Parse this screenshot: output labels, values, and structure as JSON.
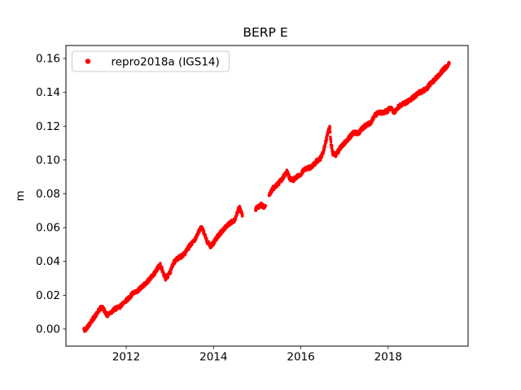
{
  "title": "BERP E",
  "chart_data": {
    "type": "scatter",
    "title": "BERP E",
    "xlabel": "",
    "ylabel": "m",
    "xlim": [
      2010.62,
      2019.83
    ],
    "ylim": [
      -0.0101,
      0.1677
    ],
    "xticks": [
      2012,
      2014,
      2016,
      2018
    ],
    "yticks": [
      0.0,
      0.02,
      0.04,
      0.06,
      0.08,
      0.1,
      0.12,
      0.14,
      0.16
    ],
    "grid": false,
    "legend_position": "upper left",
    "marker": "dot",
    "series": [
      {
        "name": "repro2018a (IGS14)",
        "color": "#ff0000",
        "units": "m",
        "segments": [
          [
            [
              2011.03,
              0.0
            ],
            [
              2011.06,
              -0.001
            ],
            [
              2011.1,
              0.001
            ],
            [
              2011.16,
              0.003
            ],
            [
              2011.24,
              0.006
            ],
            [
              2011.33,
              0.009
            ],
            [
              2011.4,
              0.012
            ],
            [
              2011.45,
              0.013
            ],
            [
              2011.5,
              0.011
            ],
            [
              2011.57,
              0.008
            ],
            [
              2011.65,
              0.01
            ],
            [
              2011.75,
              0.012
            ],
            [
              2011.85,
              0.013
            ],
            [
              2011.95,
              0.016
            ],
            [
              2012.05,
              0.018
            ],
            [
              2012.15,
              0.021
            ],
            [
              2012.25,
              0.022
            ],
            [
              2012.35,
              0.025
            ],
            [
              2012.45,
              0.027
            ],
            [
              2012.55,
              0.03
            ],
            [
              2012.65,
              0.033
            ],
            [
              2012.72,
              0.036
            ],
            [
              2012.78,
              0.038
            ],
            [
              2012.84,
              0.034
            ],
            [
              2012.9,
              0.03
            ],
            [
              2013.0,
              0.033
            ],
            [
              2013.08,
              0.039
            ],
            [
              2013.15,
              0.041
            ],
            [
              2013.25,
              0.043
            ],
            [
              2013.35,
              0.045
            ],
            [
              2013.45,
              0.049
            ],
            [
              2013.55,
              0.052
            ],
            [
              2013.65,
              0.057
            ],
            [
              2013.72,
              0.06
            ],
            [
              2013.78,
              0.057
            ],
            [
              2013.85,
              0.052
            ],
            [
              2013.93,
              0.049
            ],
            [
              2014.0,
              0.051
            ],
            [
              2014.1,
              0.055
            ],
            [
              2014.2,
              0.058
            ],
            [
              2014.3,
              0.061
            ],
            [
              2014.4,
              0.063
            ],
            [
              2014.5,
              0.065
            ],
            [
              2014.56,
              0.07
            ],
            [
              2014.6,
              0.072
            ],
            [
              2014.66,
              0.067
            ]
          ],
          [
            [
              2014.96,
              0.071
            ],
            [
              2015.02,
              0.072
            ],
            [
              2015.09,
              0.0735
            ],
            [
              2015.15,
              0.072
            ],
            [
              2015.19,
              0.073
            ]
          ],
          [
            [
              2015.27,
              0.079
            ],
            [
              2015.35,
              0.083
            ],
            [
              2015.45,
              0.085
            ],
            [
              2015.55,
              0.088
            ],
            [
              2015.63,
              0.091
            ],
            [
              2015.68,
              0.093
            ],
            [
              2015.75,
              0.089
            ],
            [
              2015.82,
              0.088
            ],
            [
              2015.9,
              0.09
            ],
            [
              2015.98,
              0.091
            ],
            [
              2016.06,
              0.094
            ],
            [
              2016.15,
              0.095
            ],
            [
              2016.25,
              0.096
            ],
            [
              2016.35,
              0.099
            ],
            [
              2016.45,
              0.101
            ],
            [
              2016.52,
              0.105
            ],
            [
              2016.58,
              0.112
            ],
            [
              2016.63,
              0.117
            ],
            [
              2016.66,
              0.119
            ],
            [
              2016.69,
              0.11
            ],
            [
              2016.73,
              0.104
            ],
            [
              2016.8,
              0.103
            ],
            [
              2016.9,
              0.107
            ],
            [
              2017.0,
              0.11
            ],
            [
              2017.1,
              0.113
            ],
            [
              2017.2,
              0.116
            ],
            [
              2017.32,
              0.116
            ],
            [
              2017.42,
              0.119
            ],
            [
              2017.52,
              0.121
            ],
            [
              2017.6,
              0.122
            ],
            [
              2017.68,
              0.126
            ],
            [
              2017.78,
              0.128
            ],
            [
              2017.88,
              0.128
            ],
            [
              2017.98,
              0.129
            ],
            [
              2018.06,
              0.131
            ],
            [
              2018.14,
              0.128
            ],
            [
              2018.22,
              0.131
            ],
            [
              2018.32,
              0.133
            ],
            [
              2018.42,
              0.134
            ],
            [
              2018.52,
              0.136
            ],
            [
              2018.62,
              0.138
            ],
            [
              2018.72,
              0.14
            ],
            [
              2018.8,
              0.141
            ],
            [
              2018.88,
              0.142
            ],
            [
              2018.96,
              0.145
            ],
            [
              2019.05,
              0.147
            ],
            [
              2019.15,
              0.15
            ],
            [
              2019.25,
              0.153
            ],
            [
              2019.33,
              0.155
            ],
            [
              2019.4,
              0.157
            ]
          ]
        ]
      }
    ]
  },
  "legend": {
    "label": "repro2018a (IGS14)",
    "marker_color": "#ff0000"
  },
  "colors": {
    "series_red": "#ff0000",
    "axis": "#000000",
    "legend_border": "#cccccc",
    "background": "#ffffff"
  }
}
